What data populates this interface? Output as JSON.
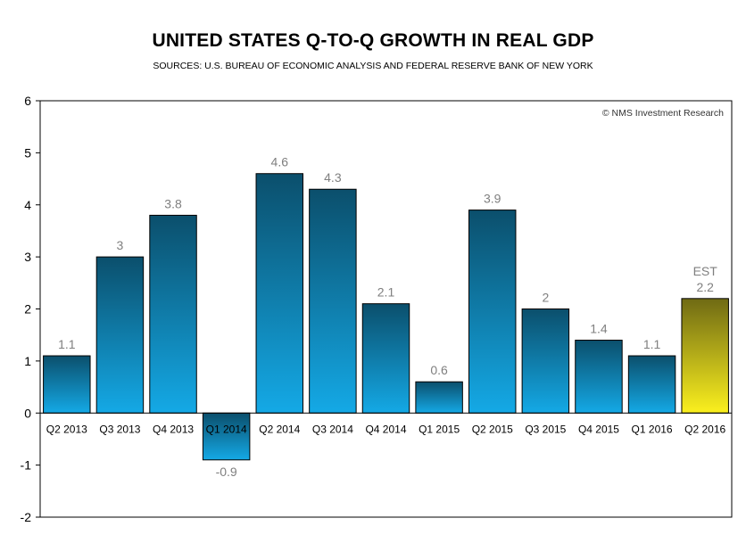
{
  "chart_data": {
    "type": "bar",
    "title": "UNITED STATES Q-TO-Q GROWTH IN REAL GDP",
    "subtitle": "SOURCES: U.S. BUREAU OF ECONOMIC ANALYSIS AND FEDERAL RESERVE BANK OF NEW YORK",
    "watermark": "© NMS Investment Research",
    "categories": [
      "Q2 2013",
      "Q3 2013",
      "Q4 2013",
      "Q1 2014",
      "Q2 2014",
      "Q3 2014",
      "Q4 2014",
      "Q1 2015",
      "Q2 2015",
      "Q3 2015",
      "Q4 2015",
      "Q1 2016",
      "Q2 2016"
    ],
    "values": [
      1.1,
      3,
      3.8,
      -0.9,
      4.6,
      4.3,
      2.1,
      0.6,
      3.9,
      2,
      1.4,
      1.1,
      2.2
    ],
    "data_labels": [
      "1.1",
      "3",
      "3.8",
      "-0.9",
      "4.6",
      "4.3",
      "2.1",
      "0.6",
      "3.9",
      "2",
      "1.4",
      "1.1",
      "2.2"
    ],
    "estimate_label": "EST",
    "estimate_index": 12,
    "ylim": [
      -2,
      6
    ],
    "yticks": [
      -2,
      -1,
      0,
      1,
      2,
      3,
      4,
      5,
      6
    ],
    "xlabel": "",
    "ylabel": "",
    "grid": false,
    "colors": {
      "bar_top": "#0b4f6c",
      "bar_bottom": "#14a9e6",
      "estimate_top": "#6f6a14",
      "estimate_bottom": "#fbf01e",
      "label": "#7f7f7f"
    }
  }
}
